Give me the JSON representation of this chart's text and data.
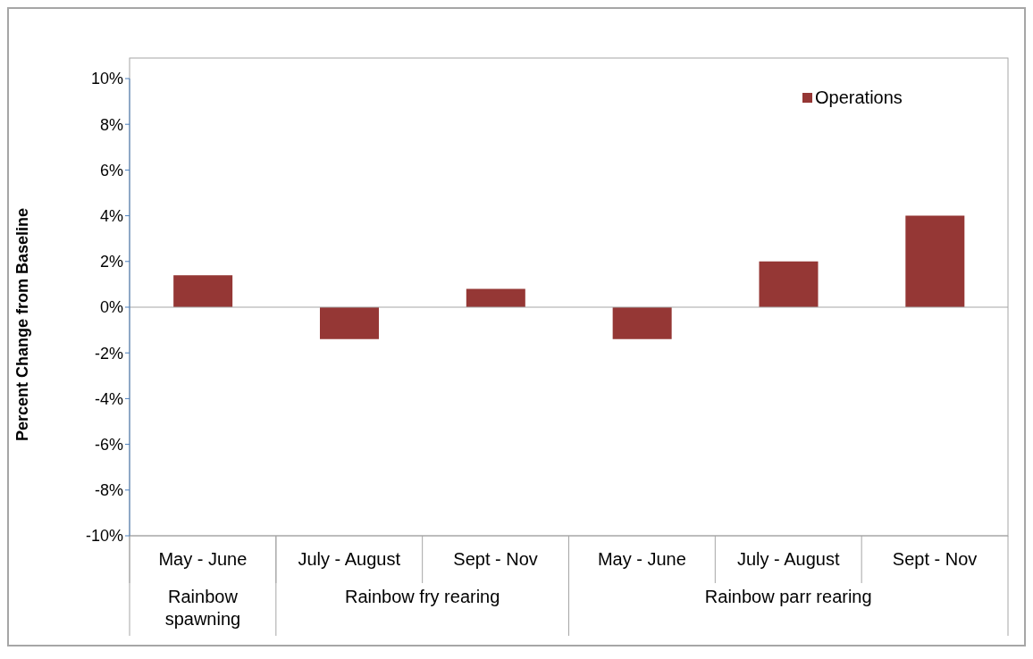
{
  "chart_data": {
    "type": "bar",
    "ylabel": "Percent Change from Baseline",
    "categories": [
      "May - June",
      "July - August",
      "Sept - Nov",
      "May - June",
      "July - August",
      "Sept - Nov"
    ],
    "series": [
      {
        "name": "Operations",
        "color": "#953735",
        "values": [
          1.4,
          -1.4,
          0.8,
          -1.4,
          2.0,
          4.0
        ]
      }
    ],
    "annotations": [
      "Rainbow spawning",
      "Rainbow fry rearing",
      "Rainbow parr rearing"
    ],
    "ylim": [
      -10,
      10
    ],
    "yticks": [
      {
        "value": -10,
        "label": "-10%"
      },
      {
        "value": -8,
        "label": "-8%"
      },
      {
        "value": -6,
        "label": "-6%"
      },
      {
        "value": -4,
        "label": "-4%"
      },
      {
        "value": -2,
        "label": "-2%"
      },
      {
        "value": 0,
        "label": "0%"
      },
      {
        "value": 2,
        "label": "2%"
      },
      {
        "value": 4,
        "label": "4%"
      },
      {
        "value": 6,
        "label": "6%"
      },
      {
        "value": 8,
        "label": "8%"
      },
      {
        "value": 10,
        "label": "10%"
      }
    ],
    "legend": "top right"
  }
}
